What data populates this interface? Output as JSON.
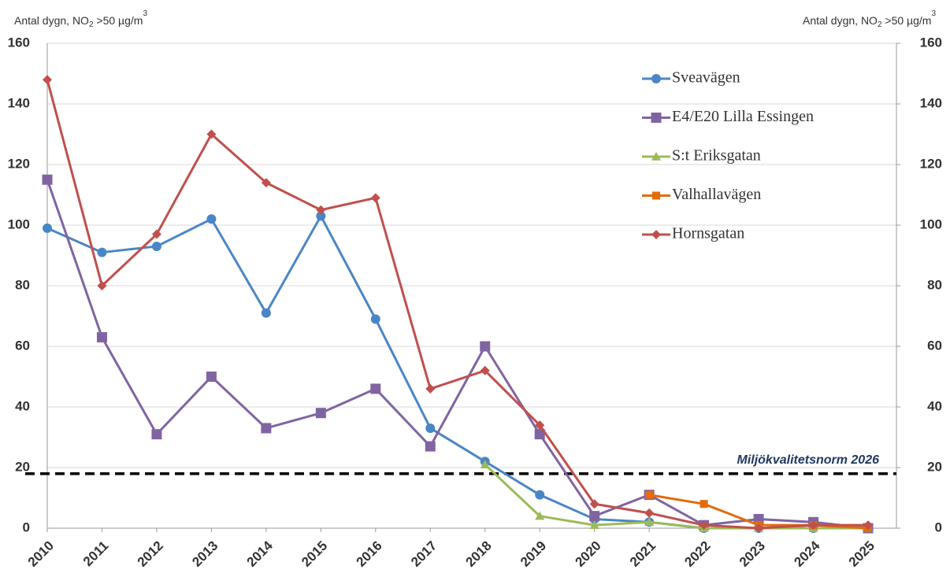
{
  "chart_data": {
    "type": "line",
    "y_label": [
      "Antal dygn, NO",
      "2",
      " >50 µg/m",
      "3"
    ],
    "y2_label": [
      "Antal dygn, NO",
      "2",
      " >50 µg/m",
      "3"
    ],
    "categories": [
      "2010",
      "2011",
      "2012",
      "2013",
      "2014",
      "2015",
      "2016",
      "2017",
      "2018",
      "2019",
      "2020",
      "2021",
      "2022",
      "2023",
      "2024",
      "2025"
    ],
    "series": [
      {
        "name": "Sveavägen",
        "color": "#4a86c5",
        "marker": "circle",
        "values": [
          99,
          91,
          93,
          102,
          71,
          103,
          69,
          33,
          22,
          11,
          3,
          2,
          0,
          0,
          0,
          0
        ]
      },
      {
        "name": "E4/E20 Lilla Essingen",
        "color": "#8064a2",
        "marker": "square",
        "values": [
          115,
          63,
          31,
          50,
          33,
          38,
          46,
          27,
          60,
          31,
          4,
          11,
          1,
          3,
          2,
          0
        ]
      },
      {
        "name": "S:t Eriksgatan",
        "color": "#9bbb59",
        "marker": "triangle",
        "values": [
          null,
          null,
          null,
          null,
          null,
          null,
          null,
          null,
          21,
          4,
          1,
          2,
          0,
          0,
          0,
          0
        ]
      },
      {
        "name": "Valhallavägen",
        "color": "#e36c09",
        "marker": "square",
        "values": [
          null,
          null,
          null,
          null,
          null,
          null,
          null,
          null,
          null,
          null,
          null,
          11,
          8,
          1,
          1,
          0
        ]
      },
      {
        "name": "Hornsgatan",
        "color": "#c0504d",
        "marker": "diamond",
        "values": [
          148,
          80,
          97,
          130,
          114,
          105,
          109,
          46,
          52,
          34,
          8,
          5,
          1,
          0,
          1,
          1
        ]
      }
    ],
    "reference_line": {
      "value": 18,
      "label": "Miljökvalitetsnorm 2026"
    },
    "ylim": [
      0,
      160
    ],
    "yticks": [
      0,
      20,
      40,
      60,
      80,
      100,
      120,
      140,
      160
    ],
    "y2lim": [
      0,
      160
    ],
    "y2ticks": [
      0,
      20,
      40,
      60,
      80,
      100,
      120,
      140,
      160
    ],
    "grid": true,
    "legend": "top-right"
  }
}
